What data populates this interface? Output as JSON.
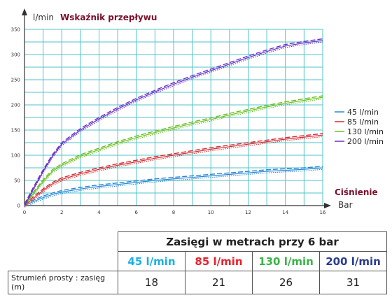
{
  "chart_data": {
    "type": "line",
    "title": "Wskaźnik przepływu",
    "ylabel": "l/min",
    "xlabel": [
      "Ciśnienie",
      "Bar"
    ],
    "xlim": [
      0,
      16
    ],
    "ylim": [
      0,
      350
    ],
    "x_ticks": [
      0,
      2,
      4,
      6,
      8,
      10,
      12,
      14,
      16
    ],
    "y_ticks": [
      0,
      50,
      100,
      150,
      200,
      250,
      300,
      350
    ],
    "grid": true,
    "legend_position": "right",
    "series": [
      {
        "name": "45 l/min",
        "color": "#2a86d8",
        "x": [
          0,
          0.5,
          1,
          1.5,
          2,
          3,
          4,
          5,
          6,
          7,
          8,
          9,
          10,
          11,
          12,
          13,
          14,
          15,
          16
        ],
        "y": [
          0,
          8,
          16,
          22,
          27,
          33,
          38,
          42,
          46,
          50,
          53,
          56,
          59,
          62,
          65,
          68,
          70,
          72,
          75
        ]
      },
      {
        "name": "85 l/min",
        "color": "#d82a30",
        "x": [
          0,
          0.5,
          1,
          1.5,
          2,
          3,
          4,
          5,
          6,
          7,
          8,
          9,
          10,
          11,
          12,
          13,
          14,
          15,
          16
        ],
        "y": [
          0,
          15,
          30,
          43,
          52,
          63,
          72,
          80,
          87,
          94,
          100,
          106,
          112,
          117,
          122,
          127,
          132,
          136,
          140
        ]
      },
      {
        "name": "130 l/min",
        "color": "#6abf1e",
        "x": [
          0,
          0.5,
          1,
          1.5,
          2,
          3,
          4,
          5,
          6,
          7,
          8,
          9,
          10,
          11,
          12,
          13,
          14,
          15,
          16
        ],
        "y": [
          0,
          25,
          48,
          68,
          80,
          98,
          111,
          124,
          135,
          145,
          154,
          163,
          171,
          180,
          188,
          196,
          203,
          209,
          215
        ]
      },
      {
        "name": "200 l/min",
        "color": "#6a2fc8",
        "x": [
          0,
          0.5,
          1,
          1.5,
          2,
          3,
          4,
          5,
          6,
          7,
          8,
          9,
          10,
          11,
          12,
          13,
          14,
          15,
          16
        ],
        "y": [
          0,
          35,
          68,
          98,
          122,
          150,
          172,
          192,
          210,
          226,
          241,
          255,
          268,
          281,
          294,
          306,
          317,
          323,
          328
        ]
      }
    ]
  },
  "table": {
    "title": "Zasięgi w metrach przy 6 bar",
    "headers": [
      {
        "label": "45 l/min",
        "color": "#1ab0e6"
      },
      {
        "label": "85 l/min",
        "color": "#e8202a"
      },
      {
        "label": "130 l/min",
        "color": "#3cb24a"
      },
      {
        "label": "200 l/min",
        "color": "#2a3d8f"
      }
    ],
    "rows": [
      {
        "label": "Strumień prosty : zasięg (m)",
        "values": [
          "18",
          "21",
          "26",
          "31"
        ]
      }
    ]
  },
  "colors": {
    "grid": "#4fc3c8",
    "axis": "#333333",
    "title": "#7a0f2a"
  }
}
